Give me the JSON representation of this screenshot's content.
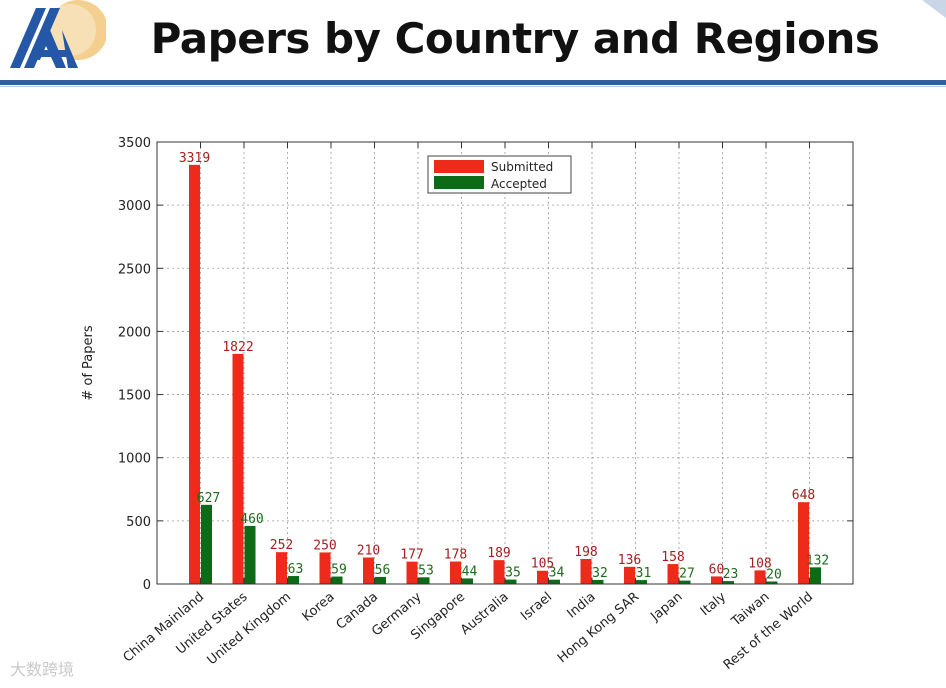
{
  "slide": {
    "title": "Papers by Country and Regions",
    "watermark": "大数跨境"
  },
  "colors": {
    "header_rule": "#2f5f9e",
    "submitted": "#ee2a1b",
    "accepted": "#0d6b17",
    "submitted_label": "#a52020",
    "accepted_label": "#1e6b1e"
  },
  "chart_data": {
    "type": "bar",
    "title": "",
    "xlabel": "",
    "ylabel": "# of Papers",
    "ylim": [
      0,
      3500
    ],
    "yticks": [
      0,
      500,
      1000,
      1500,
      2000,
      2500,
      3000,
      3500
    ],
    "grid": true,
    "legend_position": "top-center",
    "categories": [
      "China Mainland",
      "United States",
      "United Kingdom",
      "Korea",
      "Canada",
      "Germany",
      "Singapore",
      "Australia",
      "Israel",
      "India",
      "Hong Kong SAR",
      "Japan",
      "Italy",
      "Taiwan",
      "Rest of the World"
    ],
    "series": [
      {
        "name": "Submitted",
        "values": [
          3319,
          1822,
          252,
          250,
          210,
          177,
          178,
          189,
          105,
          198,
          136,
          158,
          60,
          108,
          648
        ]
      },
      {
        "name": "Accepted",
        "values": [
          627,
          460,
          63,
          59,
          56,
          53,
          44,
          35,
          34,
          32,
          31,
          27,
          23,
          20,
          132
        ]
      }
    ]
  }
}
